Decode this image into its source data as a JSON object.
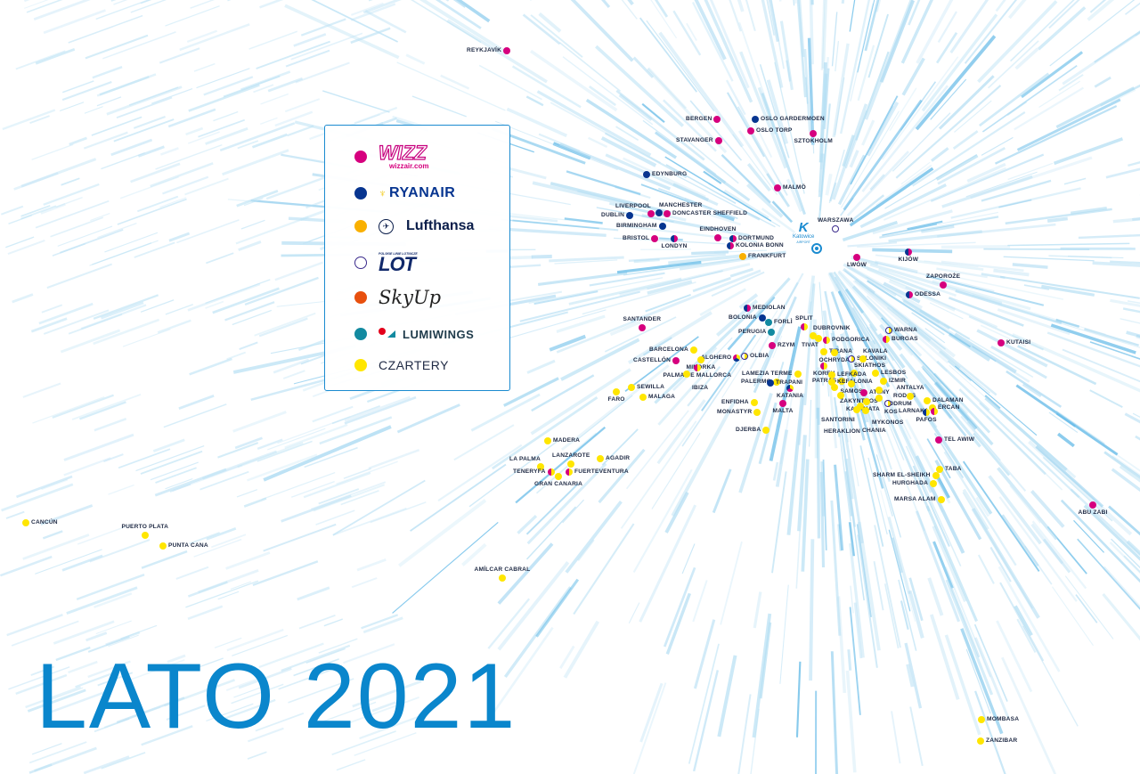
{
  "title": "LATO 2021",
  "hub": {
    "name": "Katowice",
    "sub": "AIRPORT",
    "icon": "katowice-airport-logo"
  },
  "colors": {
    "W": "#d6007e",
    "R": "#073590",
    "L": "#f9b000",
    "O": "#3a2a8c",
    "S": "#e8500e",
    "M": "#138aa0",
    "C": "#ffe600",
    "accent": "#0a86cc"
  },
  "legend": [
    {
      "key": "W",
      "name": "Wizz Air",
      "logo_text": "WIZZ",
      "logo_sub": "wizzair.com"
    },
    {
      "key": "R",
      "name": "Ryanair",
      "logo_text": "RYANAIR"
    },
    {
      "key": "L",
      "name": "Lufthansa",
      "logo_text": "Lufthansa"
    },
    {
      "key": "O",
      "name": "LOT",
      "logo_text": "LOT",
      "logo_sub": "POLSKIE LINIE LOTNICZE"
    },
    {
      "key": "S",
      "name": "SkyUp",
      "logo_text": "SkyUp"
    },
    {
      "key": "M",
      "name": "Lumiwings",
      "logo_text": "LUMIWINGS"
    },
    {
      "key": "C",
      "name": "Czartery",
      "logo_text": "CZARTERY"
    }
  ],
  "destinations": [
    {
      "name": "REYKJAVÍK",
      "airlines": [
        "W"
      ]
    },
    {
      "name": "BERGEN",
      "airlines": [
        "W"
      ]
    },
    {
      "name": "OSLO GARDERMOEN",
      "airlines": [
        "R"
      ]
    },
    {
      "name": "OSLO TORP",
      "airlines": [
        "W"
      ]
    },
    {
      "name": "SZTOKHOLM",
      "airlines": [
        "W"
      ]
    },
    {
      "name": "STAVANGER",
      "airlines": [
        "W"
      ]
    },
    {
      "name": "EDYNBURG",
      "airlines": [
        "R"
      ]
    },
    {
      "name": "MALMÖ",
      "airlines": [
        "W"
      ]
    },
    {
      "name": "LIVERPOOL",
      "airlines": [
        "W"
      ]
    },
    {
      "name": "MANCHESTER",
      "airlines": [
        "R"
      ]
    },
    {
      "name": "DONCASTER SHEFFIELD",
      "airlines": [
        "W"
      ]
    },
    {
      "name": "DUBLIN",
      "airlines": [
        "R"
      ]
    },
    {
      "name": "BIRMINGHAM",
      "airlines": [
        "R"
      ]
    },
    {
      "name": "BRISTOL",
      "airlines": [
        "W"
      ]
    },
    {
      "name": "LONDYN",
      "airlines": [
        "W",
        "R"
      ]
    },
    {
      "name": "EINDHOVEN",
      "airlines": [
        "W"
      ]
    },
    {
      "name": "DORTMUND",
      "airlines": [
        "W",
        "R"
      ]
    },
    {
      "name": "KOLONIA BONN",
      "airlines": [
        "W",
        "R"
      ]
    },
    {
      "name": "FRANKFURT",
      "airlines": [
        "L"
      ]
    },
    {
      "name": "WARSZAWA",
      "airlines": [
        "O"
      ]
    },
    {
      "name": "LWÓW",
      "airlines": [
        "W"
      ]
    },
    {
      "name": "KIJÓW",
      "airlines": [
        "W",
        "R"
      ]
    },
    {
      "name": "ZAPOROŻE",
      "airlines": [
        "W"
      ]
    },
    {
      "name": "ODESSA",
      "airlines": [
        "W",
        "R"
      ]
    },
    {
      "name": "SANTANDER",
      "airlines": [
        "W"
      ]
    },
    {
      "name": "MEDIOLAN",
      "airlines": [
        "W",
        "R"
      ]
    },
    {
      "name": "BOLONIA",
      "airlines": [
        "R"
      ]
    },
    {
      "name": "FORLÌ",
      "airlines": [
        "M"
      ]
    },
    {
      "name": "PERUGIA",
      "airlines": [
        "M"
      ]
    },
    {
      "name": "RZYM",
      "airlines": [
        "W"
      ]
    },
    {
      "name": "BARCELONA",
      "airlines": [
        "C"
      ]
    },
    {
      "name": "CASTELLÓN",
      "airlines": [
        "W"
      ]
    },
    {
      "name": "ALGHERO",
      "airlines": [
        "C",
        "R",
        "W"
      ]
    },
    {
      "name": "OLBIA",
      "airlines": [
        "C",
        "O"
      ]
    },
    {
      "name": "MINORKA",
      "airlines": [
        "C"
      ]
    },
    {
      "name": "PALMA DE MALLORCA",
      "airlines": [
        "C",
        "W"
      ]
    },
    {
      "name": "IBIZA",
      "airlines": [
        "C"
      ]
    },
    {
      "name": "LAMEZIA TERME",
      "airlines": [
        "C"
      ]
    },
    {
      "name": "PALERMO",
      "airlines": [
        "C"
      ]
    },
    {
      "name": "TRAPANI",
      "airlines": [
        "R"
      ]
    },
    {
      "name": "KATANIA",
      "airlines": [
        "C",
        "W",
        "R"
      ]
    },
    {
      "name": "SEWILLA",
      "airlines": [
        "C"
      ]
    },
    {
      "name": "FARO",
      "airlines": [
        "C"
      ]
    },
    {
      "name": "MALAGA",
      "airlines": [
        "C"
      ]
    },
    {
      "name": "ENFIDHA",
      "airlines": [
        "C"
      ]
    },
    {
      "name": "MONASTYR",
      "airlines": [
        "C"
      ]
    },
    {
      "name": "MALTA",
      "airlines": [
        "W"
      ]
    },
    {
      "name": "DJERBA",
      "airlines": [
        "C"
      ]
    },
    {
      "name": "SPLIT",
      "airlines": [
        "C",
        "W"
      ]
    },
    {
      "name": "DUBROVNIK",
      "airlines": [
        "C"
      ]
    },
    {
      "name": "PODGORICA",
      "airlines": [
        "C",
        "W"
      ]
    },
    {
      "name": "TIVAT",
      "airlines": [
        "C"
      ]
    },
    {
      "name": "TIRANA",
      "airlines": [
        "C"
      ]
    },
    {
      "name": "OCHRYDA",
      "airlines": [
        "C"
      ]
    },
    {
      "name": "SALONIKI",
      "airlines": [
        "C",
        "O"
      ]
    },
    {
      "name": "KAVALA",
      "airlines": [
        "C"
      ]
    },
    {
      "name": "KORFU",
      "airlines": [
        "C",
        "W"
      ]
    },
    {
      "name": "SKIATHOS",
      "airlines": [
        "C"
      ]
    },
    {
      "name": "LESBOS",
      "airlines": [
        "C"
      ]
    },
    {
      "name": "LEFKADA",
      "airlines": [
        "C"
      ]
    },
    {
      "name": "PATRAS",
      "airlines": [
        "C"
      ]
    },
    {
      "name": "KEFALONIA",
      "airlines": [
        "C"
      ]
    },
    {
      "name": "IZMIR",
      "airlines": [
        "C"
      ]
    },
    {
      "name": "SAMOS",
      "airlines": [
        "C"
      ]
    },
    {
      "name": "ZAKYNTHOS",
      "airlines": [
        "C"
      ]
    },
    {
      "name": "ATENY",
      "airlines": [
        "W"
      ]
    },
    {
      "name": "BODRUM",
      "airlines": [
        "C"
      ]
    },
    {
      "name": "KALAMATA",
      "airlines": [
        "C"
      ]
    },
    {
      "name": "MYKONOS",
      "airlines": [
        "C"
      ]
    },
    {
      "name": "KOS",
      "airlines": [
        "C"
      ]
    },
    {
      "name": "RODOS",
      "airlines": [
        "C",
        "O"
      ]
    },
    {
      "name": "SANTORINI",
      "airlines": [
        "C"
      ]
    },
    {
      "name": "ANTALYA",
      "airlines": [
        "C"
      ]
    },
    {
      "name": "DALAMAN",
      "airlines": [
        "C"
      ]
    },
    {
      "name": "ERCAN",
      "airlines": [
        "C"
      ]
    },
    {
      "name": "LARNAKA",
      "airlines": [
        "C",
        "W"
      ]
    },
    {
      "name": "PAFOS",
      "airlines": [
        "C",
        "R"
      ]
    },
    {
      "name": "CHANIA",
      "airlines": [
        "C"
      ]
    },
    {
      "name": "HERAKLION",
      "airlines": [
        "C"
      ]
    },
    {
      "name": "WARNA",
      "airlines": [
        "C",
        "O"
      ]
    },
    {
      "name": "BURGAS",
      "airlines": [
        "C",
        "W"
      ]
    },
    {
      "name": "KUTAISI",
      "airlines": [
        "W"
      ]
    },
    {
      "name": "TEL AWIW",
      "airlines": [
        "W"
      ]
    },
    {
      "name": "TABA",
      "airlines": [
        "C"
      ]
    },
    {
      "name": "SHARM EL-SHEIKH",
      "airlines": [
        "C"
      ]
    },
    {
      "name": "HURGHADA",
      "airlines": [
        "C"
      ]
    },
    {
      "name": "MARSA ALAM",
      "airlines": [
        "C"
      ]
    },
    {
      "name": "ABU ZABI",
      "airlines": [
        "W"
      ]
    },
    {
      "name": "MADERA",
      "airlines": [
        "C"
      ]
    },
    {
      "name": "LA PALMA",
      "airlines": [
        "C"
      ]
    },
    {
      "name": "TENERYFA",
      "airlines": [
        "C",
        "W"
      ]
    },
    {
      "name": "LANZAROTE",
      "airlines": [
        "C"
      ]
    },
    {
      "name": "FUERTEVENTURA",
      "airlines": [
        "C",
        "W"
      ]
    },
    {
      "name": "GRAN CANARIA",
      "airlines": [
        "C"
      ]
    },
    {
      "name": "AGADIR",
      "airlines": [
        "C"
      ]
    },
    {
      "name": "CANCÚN",
      "airlines": [
        "C"
      ]
    },
    {
      "name": "PUERTO PLATA",
      "airlines": [
        "C"
      ]
    },
    {
      "name": "PUNTA CANA",
      "airlines": [
        "C"
      ]
    },
    {
      "name": "AMÍLCAR CABRAL",
      "airlines": [
        "C"
      ]
    },
    {
      "name": "MOMBASA",
      "airlines": [
        "C"
      ]
    },
    {
      "name": "ZANZIBAR",
      "airlines": [
        "C"
      ]
    }
  ]
}
